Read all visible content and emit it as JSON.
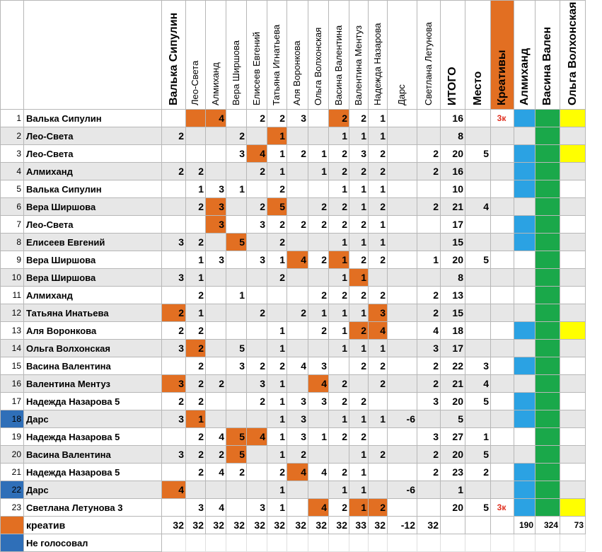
{
  "headers": [
    "",
    "",
    "Валька Сипулин",
    "Лео-Света",
    "Алмиханд",
    "Вера Ширшова",
    "Елисеев Евгений",
    "Татьяна Игнатьева",
    "Аля Воронкова",
    "Ольга Волхонская",
    "Васина Валентина",
    "Валентина Ментуз",
    "Надежда Назарова",
    "Дарс",
    "Светлана Летунова",
    "ИТОГО",
    "Место",
    "Креативы",
    "Алмиханд",
    "Васина Вален",
    "Ольга Волхонская"
  ],
  "rows": [
    {
      "n": "1",
      "name": "Валька Сипулин",
      "cells": [
        "",
        "",
        "4",
        "",
        "2",
        "2",
        "3",
        "",
        "2",
        "2",
        "1",
        "",
        "",
        "16",
        "",
        "3к",
        "",
        "",
        ""
      ]
    },
    {
      "n": "2",
      "name": "Лео-Света",
      "cells": [
        "2",
        "",
        "",
        "2",
        "",
        "1",
        "",
        "",
        "1",
        "1",
        "1",
        "",
        "",
        "8",
        "",
        "",
        "",
        "",
        ""
      ]
    },
    {
      "n": "3",
      "name": "Лео-Света",
      "cells": [
        "",
        "",
        "",
        "3",
        "4",
        "1",
        "2",
        "1",
        "2",
        "3",
        "2",
        "",
        "2",
        "20",
        "5",
        "",
        "",
        "",
        ""
      ]
    },
    {
      "n": "4",
      "name": "Алмиханд",
      "cells": [
        "2",
        "2",
        "",
        "",
        "2",
        "1",
        "",
        "1",
        "2",
        "2",
        "2",
        "",
        "2",
        "16",
        "",
        "",
        "",
        "",
        ""
      ]
    },
    {
      "n": "5",
      "name": "Валька Сипулин",
      "cells": [
        "",
        "1",
        "3",
        "1",
        "",
        "2",
        "",
        "",
        "1",
        "1",
        "1",
        "",
        "",
        "10",
        "",
        "",
        "",
        "",
        ""
      ]
    },
    {
      "n": "6",
      "name": "Вера Ширшова",
      "cells": [
        "",
        "2",
        "3",
        "",
        "2",
        "5",
        "",
        "2",
        "2",
        "1",
        "2",
        "",
        "2",
        "21",
        "4",
        "",
        "",
        "",
        ""
      ]
    },
    {
      "n": "7",
      "name": "Лео-Света",
      "cells": [
        "",
        "",
        "3",
        "",
        "3",
        "2",
        "2",
        "2",
        "2",
        "2",
        "1",
        "",
        "",
        "17",
        "",
        "",
        "",
        "",
        ""
      ]
    },
    {
      "n": "8",
      "name": "Елисеев Евгений",
      "cells": [
        "3",
        "2",
        "",
        "5",
        "",
        "2",
        "",
        "",
        "1",
        "1",
        "1",
        "",
        "",
        "15",
        "",
        "",
        "",
        "",
        ""
      ]
    },
    {
      "n": "9",
      "name": "Вера Ширшова",
      "cells": [
        "",
        "1",
        "3",
        "",
        "3",
        "1",
        "4",
        "2",
        "1",
        "2",
        "2",
        "",
        "1",
        "20",
        "5",
        "",
        "",
        "",
        ""
      ]
    },
    {
      "n": "10",
      "name": "Вера Ширшова",
      "cells": [
        "3",
        "1",
        "",
        "",
        "",
        "2",
        "",
        "",
        "1",
        "1",
        "",
        "",
        "",
        "8",
        "",
        "",
        "",
        "",
        ""
      ]
    },
    {
      "n": "11",
      "name": "Алмиханд",
      "cells": [
        "",
        "2",
        "",
        "1",
        "",
        "",
        "",
        "2",
        "2",
        "2",
        "2",
        "",
        "2",
        "13",
        "",
        "",
        "",
        "",
        ""
      ]
    },
    {
      "n": "12",
      "name": "Татьяна Инатьева",
      "cells": [
        "2",
        "1",
        "",
        "",
        "2",
        "",
        "2",
        "1",
        "1",
        "1",
        "3",
        "",
        "2",
        "15",
        "",
        "",
        "",
        "",
        ""
      ]
    },
    {
      "n": "13",
      "name": "Аля Воронкова",
      "cells": [
        "2",
        "2",
        "",
        "",
        "",
        "1",
        "",
        "2",
        "1",
        "2",
        "4",
        "",
        "4",
        "18",
        "",
        "",
        "",
        "",
        ""
      ]
    },
    {
      "n": "14",
      "name": "Ольга Волхонская",
      "cells": [
        "3",
        "2",
        "",
        "5",
        "",
        "1",
        "",
        "",
        "1",
        "1",
        "1",
        "",
        "3",
        "17",
        "",
        "",
        "",
        "",
        ""
      ]
    },
    {
      "n": "15",
      "name": "Васина Валентина",
      "cells": [
        "",
        "2",
        "",
        "3",
        "2",
        "2",
        "4",
        "3",
        "",
        "2",
        "2",
        "",
        "2",
        "22",
        "3",
        "",
        "",
        "",
        ""
      ]
    },
    {
      "n": "16",
      "name": "Валентина Ментуз",
      "cells": [
        "3",
        "2",
        "2",
        "",
        "3",
        "1",
        "",
        "4",
        "2",
        "",
        "2",
        "",
        "2",
        "21",
        "4",
        "",
        "",
        "",
        ""
      ]
    },
    {
      "n": "17",
      "name": "Надежда Назарова 5",
      "cells": [
        "2",
        "2",
        "",
        "",
        "2",
        "1",
        "3",
        "3",
        "2",
        "2",
        "",
        "",
        "3",
        "20",
        "5",
        "",
        "",
        "",
        ""
      ]
    },
    {
      "n": "18",
      "name": "Дарс",
      "cells": [
        "3",
        "1",
        "",
        "",
        "",
        "1",
        "3",
        "",
        "1",
        "1",
        "1",
        "-6",
        "",
        "5",
        "",
        "",
        "",
        "",
        ""
      ]
    },
    {
      "n": "19",
      "name": "Надежда Назарова 5",
      "cells": [
        "",
        "2",
        "4",
        "5",
        "4",
        "1",
        "3",
        "1",
        "2",
        "2",
        "",
        "",
        "3",
        "27",
        "1",
        "",
        "",
        "",
        ""
      ]
    },
    {
      "n": "20",
      "name": "Васина Валентина",
      "cells": [
        "3",
        "2",
        "2",
        "5",
        "",
        "1",
        "2",
        "",
        "",
        "1",
        "2",
        "",
        "2",
        "20",
        "5",
        "",
        "",
        "",
        ""
      ]
    },
    {
      "n": "21",
      "name": "Надежда Назарова 5",
      "cells": [
        "",
        "2",
        "4",
        "2",
        "",
        "2",
        "4",
        "4",
        "2",
        "1",
        "",
        "",
        "2",
        "23",
        "2",
        "",
        "",
        "",
        ""
      ]
    },
    {
      "n": "22",
      "name": "Дарс",
      "cells": [
        "4",
        "",
        "",
        "",
        "",
        "1",
        "",
        "",
        "1",
        "1",
        "",
        "-6",
        "",
        "1",
        "",
        "",
        "",
        "",
        ""
      ]
    },
    {
      "n": "23",
      "name": "Светлана Летунова 3",
      "cells": [
        "",
        "3",
        "4",
        "",
        "3",
        "1",
        "",
        "4",
        "2",
        "1",
        "2",
        "",
        "",
        "20",
        "5",
        "3к",
        "",
        "",
        ""
      ]
    }
  ],
  "totals": {
    "label": "креатив",
    "cells": [
      "32",
      "32",
      "32",
      "32",
      "32",
      "32",
      "32",
      "32",
      "32",
      "33",
      "32",
      "-12",
      "32",
      "",
      "",
      "",
      "190",
      "324",
      "73"
    ]
  },
  "legend": {
    "label": "Не голосовал"
  },
  "colors": {
    "orange": "#e26f22",
    "blue": "#2f6fb8",
    "skyblue": "#2ba2e3",
    "green": "#1aa84a",
    "yellow": "#ffff00",
    "altrow": "#e7e7e7"
  }
}
